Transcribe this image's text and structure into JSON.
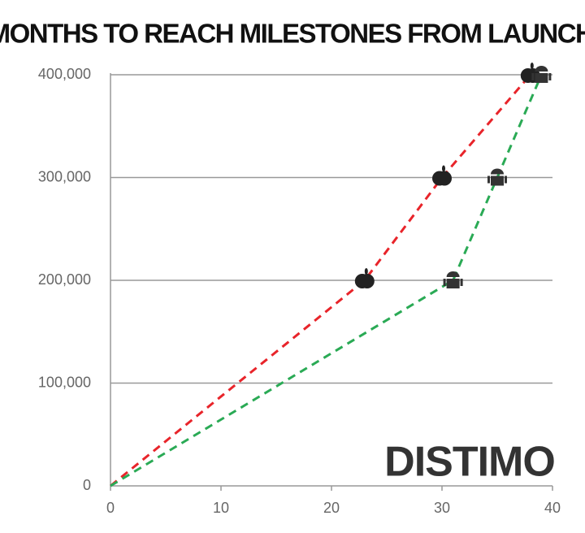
{
  "chart_data": {
    "type": "line",
    "title": "MONTHS TO REACH MILESTONES FROM LAUNCH",
    "watermark": "DISTIMO",
    "line_style": "dashed",
    "series": [
      {
        "color": "#e8242a",
        "marker": "apple",
        "x": [
          0,
          23,
          30,
          38
        ],
        "values": [
          0,
          200000,
          300000,
          400000
        ]
      },
      {
        "color": "#2aaa55",
        "marker": "android",
        "x": [
          0,
          31,
          35,
          39
        ],
        "values": [
          0,
          200000,
          300000,
          400000
        ]
      }
    ],
    "xlim": [
      0,
      40
    ],
    "xticks": [
      0,
      10,
      20,
      30,
      40
    ],
    "ylim": [
      0,
      400000
    ],
    "yticks": [
      0,
      {
        "value": 100000,
        "label": "100,000"
      },
      {
        "value": 200000,
        "label": "200,000"
      },
      {
        "value": 300000,
        "label": "300,000"
      },
      {
        "value": 400000,
        "label": "400,000"
      }
    ],
    "grid": true
  }
}
